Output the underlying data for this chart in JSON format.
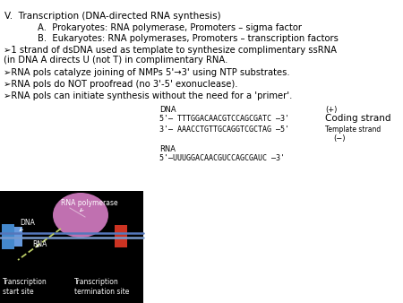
{
  "title_line": "V.  Transcription (DNA-directed RNA synthesis)",
  "sub_a": "A.  Prokaryotes: RNA polymerase, Promoters – sigma factor",
  "sub_b": "B.  Eukaryotes: RNA polymerases, Promoters – transcription factors",
  "bullet1a": "➢1 strand of dsDNA used as template to synthesize complimentary ssRNA",
  "bullet1b": "(in DNA A directs U (not T) in complimentary RNA.",
  "bullet2": "➢RNA pols catalyze joining of NMPs 5'→3' using NTP substrates.",
  "bullet3": "➢RNA pols do NOT proofread (no 3'-5' exonuclease).",
  "bullet4": "➢RNA pols can initiate synthesis without the need for a 'primer'.",
  "dna_label": "DNA",
  "dna_strand1": "5'— TTTGGACAACGTCCAGCGATC —3'",
  "dna_strand2": "3'— AAACCTGTTGCAGGTCGCTAG —5'",
  "coding_label": "Coding strand",
  "template_label": "Template strand",
  "plus_label": "(+)",
  "minus_label": "(−)",
  "rna_label": "RNA",
  "rna_strand": "5'—UUUGGACAACGUCCAGCGAUC —3'",
  "img_rna_poly": "RNA polymerase",
  "img_dna": "DNA",
  "img_rna": "RNA",
  "img_start": "Transcription\nstart site",
  "img_end": "Transcription\ntermination site",
  "bg_color": "#ffffff",
  "text_color": "#000000",
  "white": "#ffffff",
  "black": "#000000",
  "blob_color": "#c070b0",
  "blue1": "#4488cc",
  "blue2": "#6699dd",
  "red1": "#cc3322",
  "dna_line1": "#5577bb",
  "dna_line2": "#7799cc",
  "rna_line": "#bbcc66"
}
